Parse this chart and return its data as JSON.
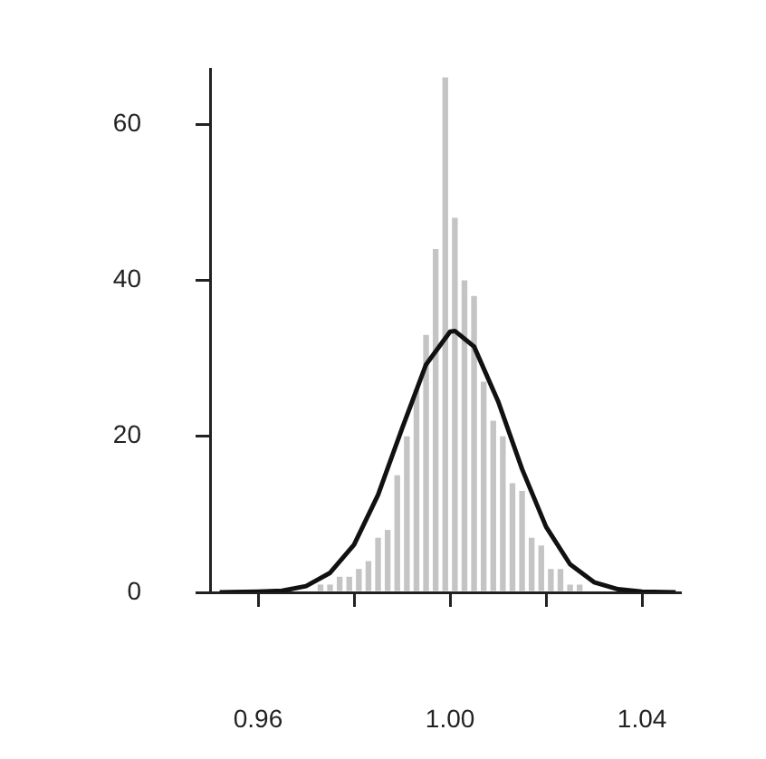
{
  "chart_data": {
    "type": "histogram",
    "series": [
      {
        "type": "histogram",
        "color": "#c4c4c4",
        "bins": [
          0.966,
          0.968,
          0.97,
          0.972,
          0.974,
          0.976,
          0.978,
          0.98,
          0.982,
          0.984,
          0.986,
          0.988,
          0.99,
          0.992,
          0.994,
          0.996,
          0.998,
          1.0,
          1.002,
          1.004,
          1.006,
          1.008,
          1.01,
          1.012,
          1.014,
          1.016,
          1.018,
          1.02,
          1.022,
          1.024,
          1.026,
          1.028,
          1.03
        ],
        "values": [
          null,
          null,
          0,
          1,
          1,
          2,
          2,
          3,
          4,
          7,
          8,
          15,
          20,
          26,
          33,
          44,
          66,
          48,
          40,
          38,
          27,
          22,
          20,
          14,
          13,
          7,
          6,
          3,
          3,
          1,
          1,
          0
        ]
      },
      {
        "type": "line",
        "color": "#111111",
        "x": [
          0.952,
          0.96,
          0.965,
          0.97,
          0.975,
          0.98,
          0.985,
          0.99,
          0.995,
          1.0,
          1.001,
          1.005,
          1.01,
          1.015,
          1.02,
          1.025,
          1.03,
          1.035,
          1.04,
          1.047
        ],
        "values": [
          0,
          0.1,
          0.2,
          0.8,
          2.5,
          6.1,
          12.5,
          21,
          29.2,
          33.4,
          33.5,
          31.5,
          24.5,
          15.8,
          8.4,
          3.6,
          1.3,
          0.4,
          0.1,
          0
        ]
      }
    ],
    "xlim": [
      0.95,
      1.048
    ],
    "ylim": [
      0,
      67
    ],
    "xticks": [
      0.96,
      {
        "value": 0.98,
        "label": null
      },
      {
        "value": 1,
        "label": "1.00"
      },
      {
        "value": 1.02,
        "label": null
      },
      1.04
    ],
    "yticks": [
      0,
      20,
      40,
      60
    ],
    "grid": false,
    "legend": false
  }
}
